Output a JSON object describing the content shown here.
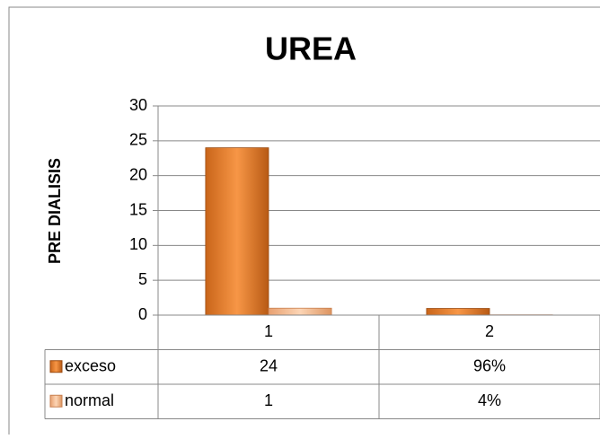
{
  "chart_data": {
    "type": "bar",
    "title": "UREA",
    "y_label": "PRE DIALISIS",
    "categories": [
      "1",
      "2"
    ],
    "series": [
      {
        "name": "exceso",
        "color": "#f08a2c",
        "values": [
          24,
          0.96
        ],
        "value_labels": [
          "24",
          "96%"
        ]
      },
      {
        "name": "normal",
        "color": "#f9c49a",
        "values": [
          1,
          0.04
        ],
        "value_labels": [
          "1",
          "4%"
        ]
      }
    ],
    "ylim": [
      0,
      30
    ],
    "yticks": [
      0,
      5,
      10,
      15,
      20,
      25,
      30
    ],
    "grid": true,
    "data_table": true
  }
}
